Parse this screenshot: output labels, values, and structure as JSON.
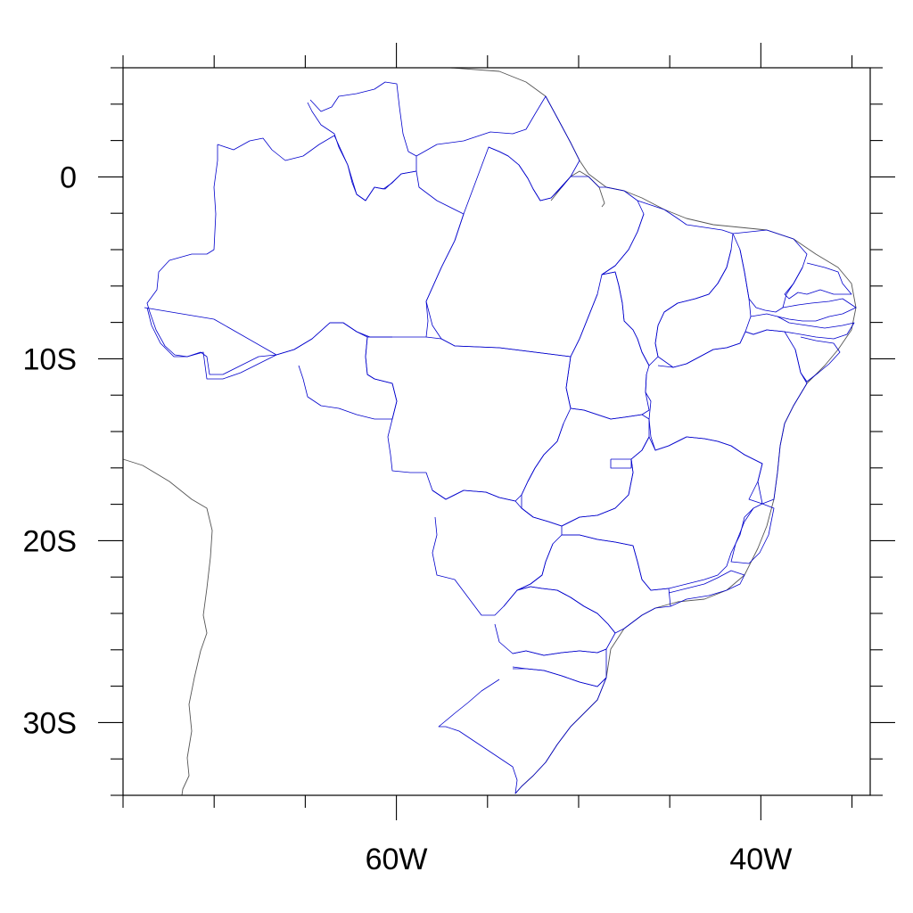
{
  "map": {
    "projection": "cylindrical equidistant",
    "lon_range": [
      -75,
      -34
    ],
    "lat_range": [
      -34,
      6
    ],
    "x_ticks": [
      {
        "value": -60,
        "label": "60W"
      },
      {
        "value": -40,
        "label": "40W"
      }
    ],
    "y_ticks": [
      {
        "value": 0,
        "label": "0"
      },
      {
        "value": -10,
        "label": "10S"
      },
      {
        "value": -20,
        "label": "20S"
      },
      {
        "value": -30,
        "label": "30S"
      }
    ],
    "minor_tick_step_lon": 5,
    "minor_tick_step_lat": 2,
    "colors": {
      "coastline": "#555555",
      "state_boundaries": "#0000cc",
      "frame": "#000000"
    }
  }
}
